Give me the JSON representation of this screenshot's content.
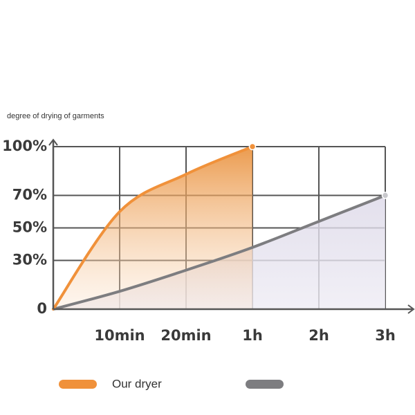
{
  "chart_data": {
    "type": "line",
    "y_label": "degree of drying of garments",
    "categories": [
      null,
      "10min",
      "20min",
      "1h",
      "2h",
      "3h"
    ],
    "series": [
      {
        "name": "Our dryer",
        "color": "#f0913a",
        "values": [
          0,
          60,
          83,
          100,
          null,
          null
        ]
      },
      {
        "color": "#7d7d80",
        "values": [
          0,
          11,
          24,
          38,
          54,
          70
        ]
      }
    ],
    "ylim": [
      0,
      100
    ],
    "yticks": [
      0,
      {
        "value": 30,
        "label": "30%"
      },
      {
        "value": 50,
        "label": "50%"
      },
      {
        "value": 70,
        "label": "70%"
      },
      {
        "value": 100,
        "label": "100%"
      }
    ],
    "grid": true
  }
}
